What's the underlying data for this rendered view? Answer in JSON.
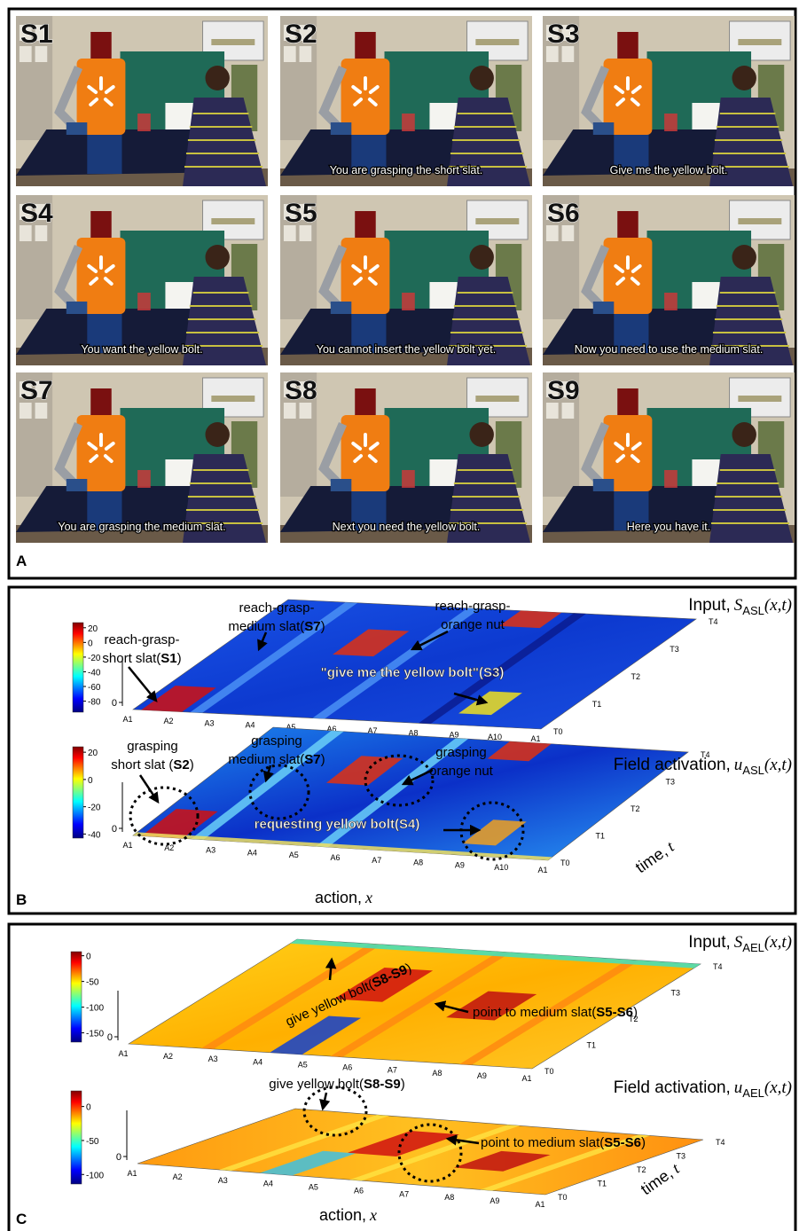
{
  "panel_a": {
    "label": "A",
    "frames": [
      {
        "label": "S1"
      },
      {
        "label": "S2",
        "caption": "You are grasping the short slat."
      },
      {
        "label": "S3",
        "caption": "Give me the yellow bolt."
      },
      {
        "label": "S4",
        "caption": "You want the yellow bolt."
      },
      {
        "label": "S5",
        "caption": "You cannot insert the yellow bolt yet."
      },
      {
        "label": "S6",
        "caption": "Now you need to use the medium slat."
      },
      {
        "label": "S7",
        "caption": "You are grasping the medium slat."
      },
      {
        "label": "S8",
        "caption": "Next you need the yellow bolt."
      },
      {
        "label": "S9",
        "caption": "Here you have it."
      }
    ]
  },
  "panel_b": {
    "label": "B",
    "plots": [
      {
        "title": {
          "prefix": "Input,",
          "symbol": "S",
          "subscript": "ASL",
          "suffix": "(x,t)"
        },
        "colorbar_ticks": [
          20,
          0,
          -20,
          -40,
          -60,
          -80
        ],
        "clim": [
          -95,
          27
        ],
        "zticks": [
          0
        ],
        "x_ticks": [
          "A1",
          "A2",
          "A3",
          "A4",
          "A5",
          "A6",
          "A7",
          "A8",
          "A9",
          "A10",
          "A1"
        ],
        "t_ticks": [
          "T0",
          "T1",
          "T2",
          "T3",
          "T4"
        ],
        "annotations": [
          {
            "lines": [
              [
                "reach-grasp-"
              ],
              [
                "short slat(",
                {
                  "bold": "S1"
                },
                ")"
              ]
            ],
            "color": "#000000"
          },
          {
            "lines": [
              [
                "reach-grasp-"
              ],
              [
                "medium slat(",
                {
                  "bold": "S7"
                },
                ")"
              ]
            ],
            "color": "#000000"
          },
          {
            "lines": [
              [
                "reach-grasp-"
              ],
              [
                "orange nut"
              ]
            ],
            "color": "#000000"
          },
          {
            "lines": [
              [
                {
                  "bold": "\"give me the yellow bolt\"("
                },
                {
                  "bold": "S3"
                },
                {
                  "bold": ")"
                }
              ]
            ],
            "color": "#ffffff"
          }
        ]
      },
      {
        "title": {
          "prefix": "Field activation,",
          "symbol": "u",
          "subscript": "ASL",
          "suffix": "(x,t)"
        },
        "colorbar_ticks": [
          20,
          0,
          -20,
          -40
        ],
        "clim": [
          -43,
          24
        ],
        "zticks": [
          0
        ],
        "x_ticks": [
          "A1",
          "A2",
          "A3",
          "A4",
          "A5",
          "A6",
          "A7",
          "A8",
          "A9",
          "A10",
          "A1"
        ],
        "t_ticks": [
          "T0",
          "T1",
          "T2",
          "T3",
          "T4"
        ],
        "x_label": {
          "text": "action,",
          "symbol": "x"
        },
        "t_label": {
          "text": "time,",
          "symbol": "t"
        },
        "annotations": [
          {
            "lines": [
              [
                "grasping"
              ],
              [
                "short slat (",
                {
                  "bold": "S2"
                },
                ")"
              ]
            ],
            "color": "#000000"
          },
          {
            "lines": [
              [
                "grasping"
              ],
              [
                "medium slat(",
                {
                  "bold": "S7"
                },
                ")"
              ]
            ],
            "color": "#000000"
          },
          {
            "lines": [
              [
                "grasping"
              ],
              [
                "orange nut"
              ]
            ],
            "color": "#000000"
          },
          {
            "lines": [
              [
                {
                  "bold": "requesting yellow bolt("
                },
                {
                  "bold": "S4"
                },
                {
                  "bold": ")"
                }
              ]
            ],
            "color": "#ffffff"
          }
        ]
      }
    ]
  },
  "panel_c": {
    "label": "C",
    "plots": [
      {
        "title": {
          "prefix": "Input,",
          "symbol": "S",
          "subscript": "AEL",
          "suffix": "(x,t)"
        },
        "colorbar_ticks": [
          0,
          -50,
          -100,
          -150
        ],
        "clim": [
          -168,
          8
        ],
        "zticks": [
          0
        ],
        "x_ticks": [
          "A1",
          "A2",
          "A3",
          "A4",
          "A5",
          "A6",
          "A7",
          "A8",
          "A9",
          "A1"
        ],
        "t_ticks": [
          "T0",
          "T1",
          "T2",
          "T3",
          "T4"
        ],
        "annotations": [
          {
            "lines": [
              [
                "give yellow bolt(",
                {
                  "bold": "S8-S9"
                },
                ")"
              ]
            ],
            "color": "#000000"
          },
          {
            "lines": [
              [
                "point to medium slat(",
                {
                  "bold": "S5-S6"
                },
                ")"
              ]
            ],
            "color": "#000000"
          }
        ]
      },
      {
        "title": {
          "prefix": "Field activation,",
          "symbol": "u",
          "subscript": "AEL",
          "suffix": "(x,t)"
        },
        "colorbar_ticks": [
          0,
          -50,
          -100
        ],
        "clim": [
          -114,
          23
        ],
        "zticks": [
          0
        ],
        "x_ticks": [
          "A1",
          "A2",
          "A3",
          "A4",
          "A5",
          "A6",
          "A7",
          "A8",
          "A9",
          "A1"
        ],
        "t_ticks": [
          "T0",
          "T1",
          "T2",
          "T3",
          "T4"
        ],
        "x_label": {
          "text": "action,",
          "symbol": "x"
        },
        "t_label": {
          "text": "time,",
          "symbol": "t"
        },
        "annotations": [
          {
            "lines": [
              [
                "give yellow bolt(",
                {
                  "bold": "S8-S9"
                },
                ")"
              ]
            ],
            "color": "#000000"
          },
          {
            "lines": [
              [
                "point to medium slat(",
                {
                  "bold": "S5-S6"
                },
                ")"
              ]
            ],
            "color": "#000000"
          }
        ]
      }
    ]
  }
}
